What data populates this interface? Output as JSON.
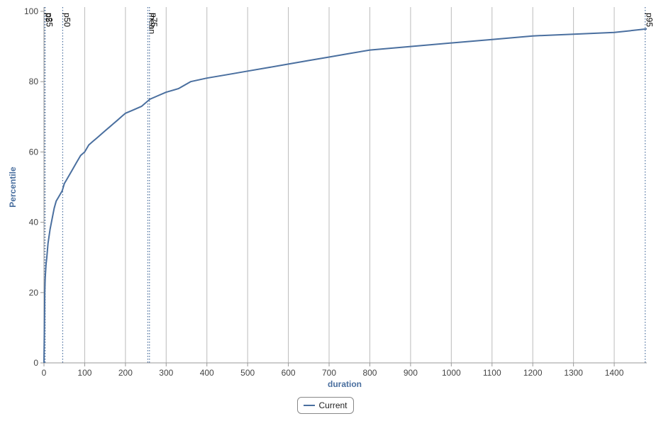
{
  "chart_data": {
    "type": "line",
    "xlabel": "duration",
    "ylabel": "Percentile",
    "xlim": [
      0,
      1480
    ],
    "ylim": [
      0,
      100
    ],
    "x_ticks": [
      0,
      100,
      200,
      300,
      400,
      500,
      600,
      700,
      800,
      900,
      1000,
      1100,
      1200,
      1300,
      1400
    ],
    "y_ticks": [
      0,
      20,
      40,
      60,
      80,
      100
    ],
    "grid": "vertical",
    "legend_position": "bottom",
    "colors": {
      "series": "#4a6f9f",
      "marker": "#4a6f9f",
      "grid": "#bbbbbb",
      "axis_title": "#4a6f9f"
    },
    "series": [
      {
        "name": "Current",
        "x": [
          0,
          0.5,
          1,
          1.5,
          2,
          3,
          4,
          5,
          7,
          10,
          15,
          20,
          25,
          30,
          35,
          40,
          45,
          50,
          55,
          60,
          70,
          80,
          90,
          100,
          110,
          120,
          130,
          140,
          150,
          160,
          170,
          180,
          190,
          200,
          220,
          240,
          260,
          280,
          300,
          330,
          360,
          400,
          450,
          500,
          550,
          600,
          650,
          700,
          750,
          800,
          900,
          1000,
          1100,
          1200,
          1300,
          1400,
          1480
        ],
        "y": [
          0,
          5,
          10,
          15,
          20,
          24,
          26,
          28,
          30,
          34,
          38,
          41,
          44,
          46,
          47,
          48,
          49,
          51,
          52,
          53,
          55,
          57,
          59,
          60,
          62,
          63,
          64,
          65,
          66,
          67,
          68,
          69,
          70,
          71,
          72,
          73,
          75,
          76,
          77,
          78,
          80,
          81,
          82,
          83,
          84,
          85,
          86,
          87,
          88,
          89,
          90,
          91,
          92,
          93,
          93.5,
          94,
          95
        ]
      }
    ],
    "markers": [
      {
        "label": "p5",
        "x": 1
      },
      {
        "label": "p25",
        "x": 3
      },
      {
        "label": "p50",
        "x": 46
      },
      {
        "label": "mean",
        "x": 255
      },
      {
        "label": "p75",
        "x": 259
      },
      {
        "label": "p95",
        "x": 1476
      }
    ]
  },
  "legend": {
    "label": "Current"
  }
}
